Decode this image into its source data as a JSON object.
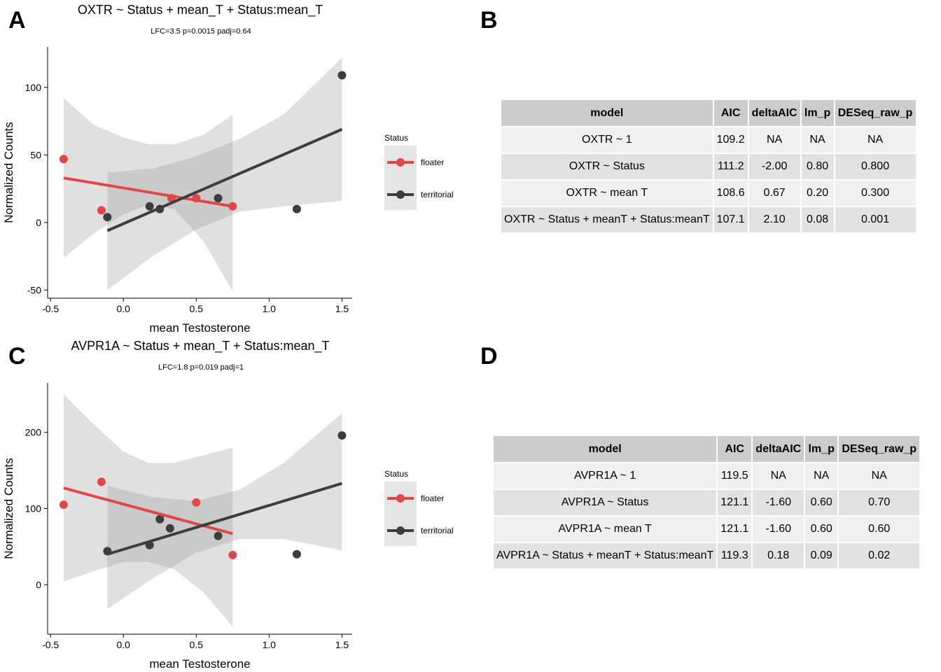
{
  "panels": {
    "a": "A",
    "b": "B",
    "c": "C",
    "d": "D"
  },
  "chart_data": [
    {
      "type": "scatter",
      "title": "OXTR ~ Status + mean_T + Status:mean_T",
      "subtitle": "LFC=3.5 p=0.0015 padj=0.64",
      "xlabel": "mean Testosterone",
      "ylabel": "Normalized Counts",
      "xlim": [
        -0.52,
        1.57
      ],
      "ylim": [
        -56,
        130
      ],
      "xticks": [
        -0.5,
        0.0,
        0.5,
        1.0,
        1.5
      ],
      "xtick_labels": [
        "-0.5",
        "0.0",
        "0.5",
        "1.0",
        "1.5"
      ],
      "yticks": [
        -50,
        0,
        50,
        100
      ],
      "ytick_labels": [
        "-50",
        "0",
        "50",
        "100"
      ],
      "legend": {
        "title": "Status",
        "position": "right"
      },
      "series": [
        {
          "name": "floater",
          "color": "#e04848",
          "points": [
            [
              -0.41,
              47
            ],
            [
              -0.15,
              9
            ],
            [
              0.33,
              18
            ],
            [
              0.5,
              18
            ],
            [
              0.75,
              12
            ]
          ],
          "fit": [
            [
              -0.41,
              33
            ],
            [
              0.75,
              12
            ]
          ],
          "band": {
            "x": [
              -0.41,
              -0.2,
              0.0,
              0.17,
              0.35,
              0.55,
              0.75
            ],
            "upper": [
              92,
              72,
              63,
              58,
              58,
              65,
              80
            ],
            "lower": [
              -26,
              -8,
              6,
              13,
              10,
              -14,
              -51
            ]
          }
        },
        {
          "name": "territorial",
          "color": "#3d3d3d",
          "points": [
            [
              -0.11,
              4
            ],
            [
              0.18,
              12
            ],
            [
              0.25,
              10
            ],
            [
              0.65,
              18
            ],
            [
              1.19,
              10
            ],
            [
              1.5,
              109
            ]
          ],
          "fit": [
            [
              -0.11,
              -6
            ],
            [
              1.5,
              69
            ]
          ],
          "band": {
            "x": [
              -0.11,
              0.2,
              0.5,
              0.8,
              1.1,
              1.5
            ],
            "upper": [
              37,
              40,
              49,
              62,
              80,
              122
            ],
            "lower": [
              -50,
              -25,
              -5,
              8,
              12,
              16
            ]
          }
        }
      ]
    },
    {
      "type": "scatter",
      "title": "AVPR1A ~ Status + mean_T + Status:mean_T",
      "subtitle": "LFC=1.8 p=0.019 padj=1",
      "xlabel": "mean Testosterone",
      "ylabel": "Normalized Counts",
      "xlim": [
        -0.52,
        1.57
      ],
      "ylim": [
        -65,
        265
      ],
      "xticks": [
        -0.5,
        0.0,
        0.5,
        1.0,
        1.5
      ],
      "xtick_labels": [
        "-0.5",
        "0.0",
        "0.5",
        "1.0",
        "1.5"
      ],
      "yticks": [
        0,
        100,
        200
      ],
      "ytick_labels": [
        "0",
        "100",
        "200"
      ],
      "legend": {
        "title": "Status",
        "position": "right"
      },
      "series": [
        {
          "name": "floater",
          "color": "#e04848",
          "points": [
            [
              -0.41,
              105
            ],
            [
              -0.15,
              135
            ],
            [
              0.5,
              108
            ],
            [
              0.75,
              39
            ]
          ],
          "fit": [
            [
              -0.41,
              127
            ],
            [
              0.75,
              67
            ]
          ],
          "band": {
            "x": [
              -0.41,
              -0.2,
              0.0,
              0.17,
              0.35,
              0.55,
              0.75
            ],
            "upper": [
              250,
              210,
              175,
              160,
              160,
              170,
              180
            ],
            "lower": [
              4,
              18,
              30,
              30,
              20,
              -10,
              -55
            ]
          }
        },
        {
          "name": "territorial",
          "color": "#3d3d3d",
          "points": [
            [
              -0.11,
              44
            ],
            [
              0.18,
              52
            ],
            [
              0.25,
              86
            ],
            [
              0.32,
              74
            ],
            [
              0.65,
              64
            ],
            [
              1.19,
              40
            ],
            [
              1.5,
              196
            ]
          ],
          "fit": [
            [
              -0.11,
              40
            ],
            [
              1.5,
              133
            ]
          ],
          "band": {
            "x": [
              -0.11,
              0.2,
              0.5,
              0.8,
              1.1,
              1.5
            ],
            "upper": [
              130,
              115,
              110,
              125,
              160,
              225
            ],
            "lower": [
              -32,
              8,
              42,
              60,
              60,
              45
            ]
          }
        }
      ]
    }
  ],
  "tables": {
    "oxtr": {
      "columns": [
        "model",
        "AIC",
        "deltaAIC",
        "lm_p",
        "DESeq_raw_p"
      ],
      "rows": [
        [
          "OXTR ~ 1",
          "109.2",
          "NA",
          "NA",
          "NA"
        ],
        [
          "OXTR ~ Status",
          "111.2",
          "-2.00",
          "0.80",
          "0.800"
        ],
        [
          "OXTR ~ mean T",
          "108.6",
          "0.67",
          "0.20",
          "0.300"
        ],
        [
          "OXTR ~ Status + meanT + Status:meanT",
          "107.1",
          "2.10",
          "0.08",
          "0.001"
        ]
      ]
    },
    "avpr1a": {
      "columns": [
        "model",
        "AIC",
        "deltaAIC",
        "lm_p",
        "DESeq_raw_p"
      ],
      "rows": [
        [
          "AVPR1A ~ 1",
          "119.5",
          "NA",
          "NA",
          "NA"
        ],
        [
          "AVPR1A ~ Status",
          "121.1",
          "-1.60",
          "0.60",
          "0.70"
        ],
        [
          "AVPR1A ~ mean T",
          "121.1",
          "-1.60",
          "0.60",
          "0.60"
        ],
        [
          "AVPR1A ~ Status + meanT + Status:meanT",
          "119.3",
          "0.18",
          "0.09",
          "0.02"
        ]
      ]
    }
  }
}
